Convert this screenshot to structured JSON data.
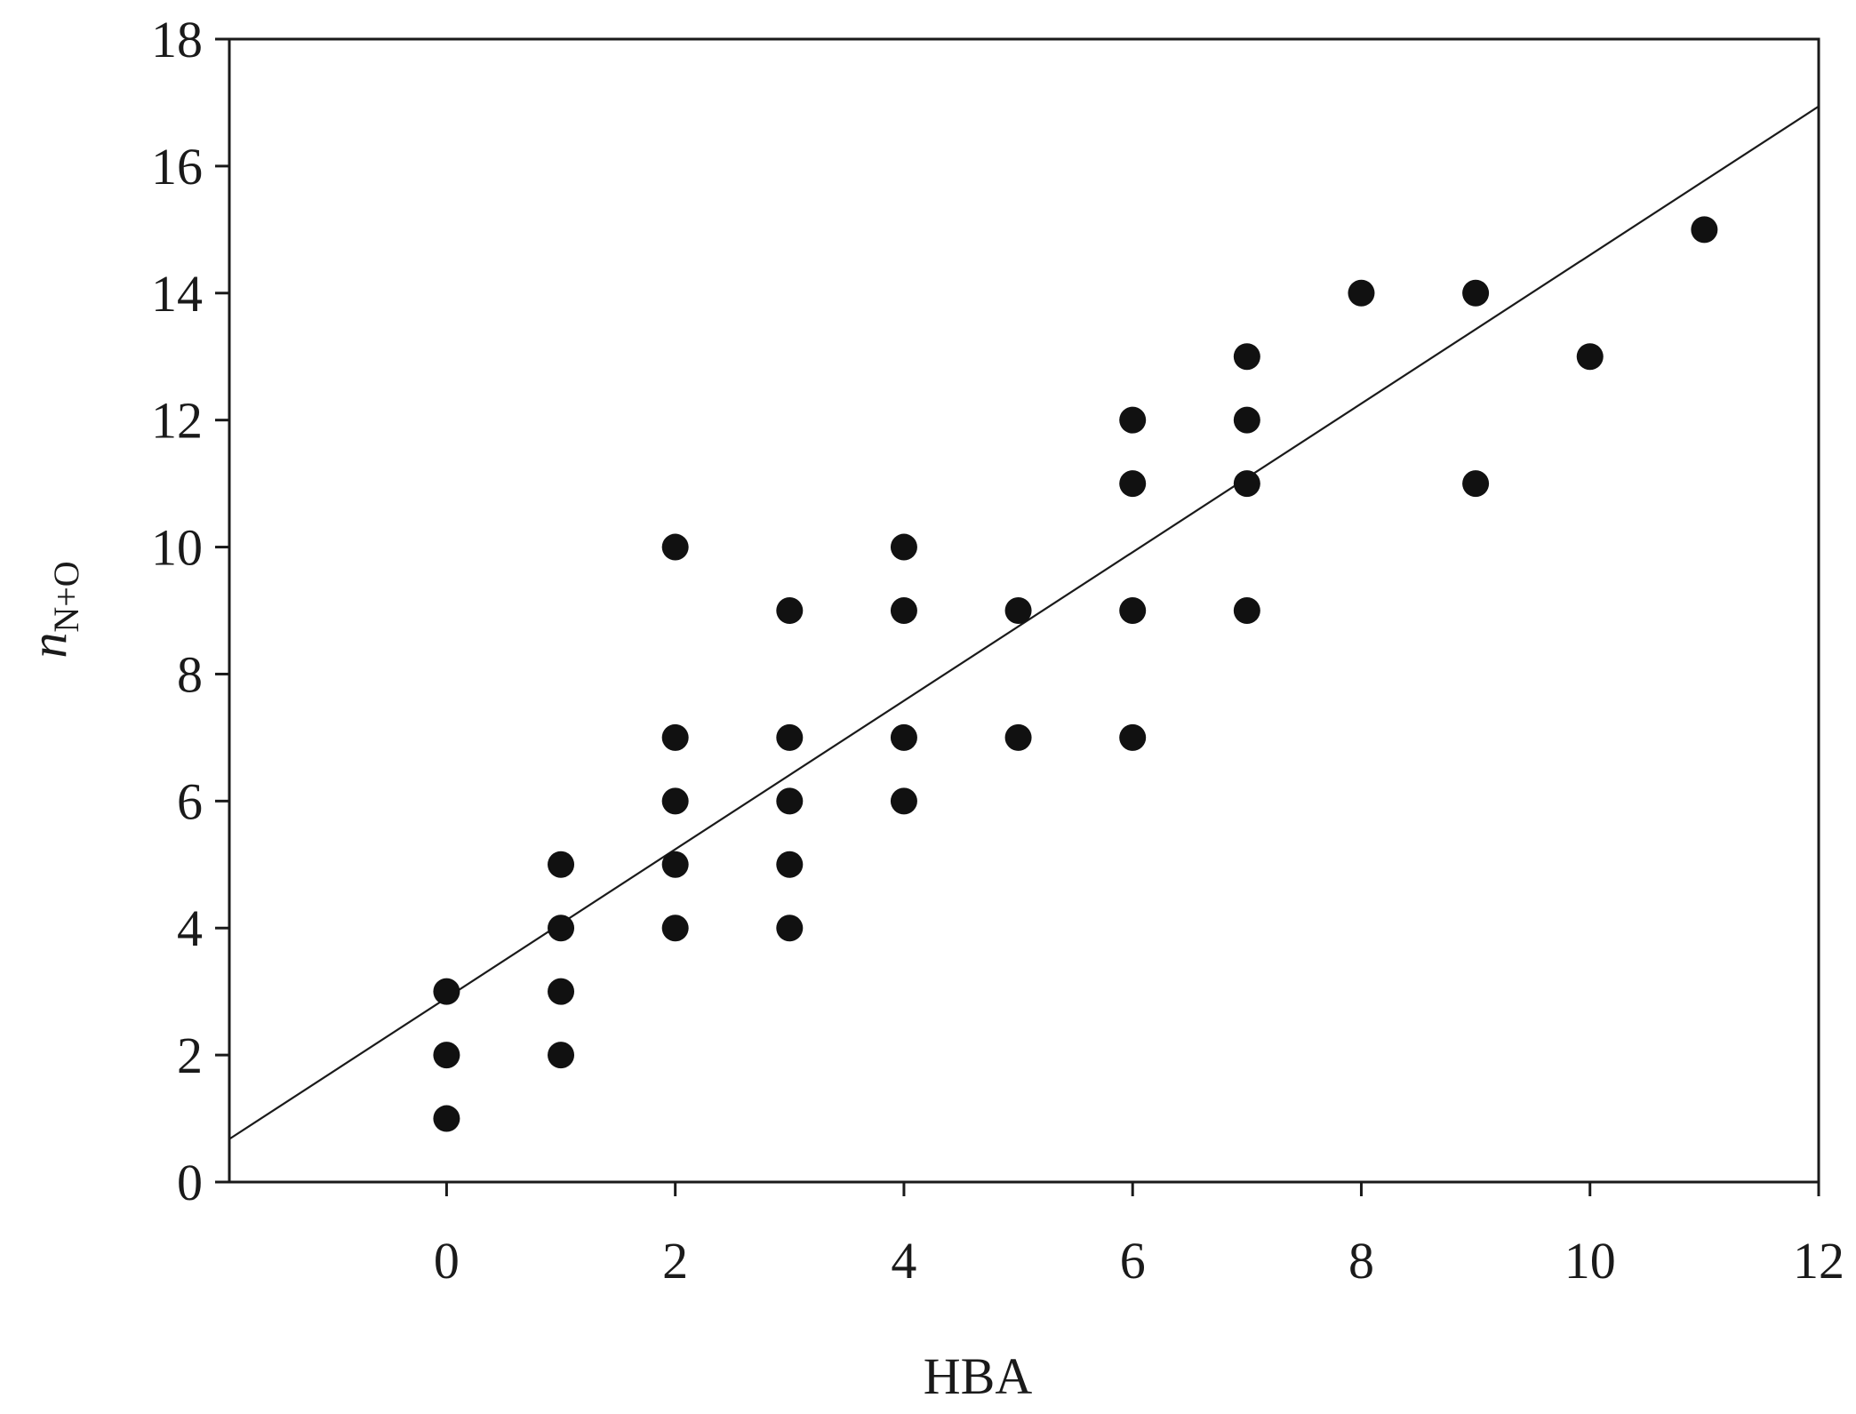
{
  "chart_data": {
    "type": "scatter",
    "xlabel": "HBA",
    "ylabel": "n",
    "ylabel_subscript": "N+O",
    "xlim": [
      -1.9,
      12
    ],
    "ylim": [
      0,
      18
    ],
    "xticks": [
      "0",
      "2",
      "4",
      "6",
      "8",
      "10",
      "12"
    ],
    "yticks": [
      "0",
      "2",
      "4",
      "6",
      "8",
      "10",
      "12",
      "14",
      "16",
      "18"
    ],
    "grid": false,
    "legend": "none",
    "series": [
      {
        "points": [
          [
            0,
            1
          ],
          [
            0,
            2
          ],
          [
            0,
            3
          ],
          [
            1,
            2
          ],
          [
            1,
            3
          ],
          [
            1,
            4
          ],
          [
            1,
            5
          ],
          [
            2,
            4
          ],
          [
            2,
            5
          ],
          [
            2,
            6
          ],
          [
            2,
            7
          ],
          [
            2,
            10
          ],
          [
            3,
            4
          ],
          [
            3,
            5
          ],
          [
            3,
            6
          ],
          [
            3,
            7
          ],
          [
            3,
            9
          ],
          [
            4,
            6
          ],
          [
            4,
            7
          ],
          [
            4,
            9
          ],
          [
            4,
            10
          ],
          [
            5,
            7
          ],
          [
            5,
            9
          ],
          [
            6,
            7
          ],
          [
            6,
            9
          ],
          [
            6,
            11
          ],
          [
            6,
            12
          ],
          [
            7,
            9
          ],
          [
            7,
            11
          ],
          [
            7,
            12
          ],
          [
            7,
            13
          ],
          [
            8,
            14
          ],
          [
            9,
            11
          ],
          [
            9,
            14
          ],
          [
            10,
            13
          ],
          [
            11,
            15
          ]
        ]
      }
    ],
    "fit_line": {
      "slope": 1.17,
      "intercept": 2.9
    },
    "colors": {
      "marker": "#111111",
      "line": "#1a1a1a",
      "background": "#ffffff"
    }
  }
}
